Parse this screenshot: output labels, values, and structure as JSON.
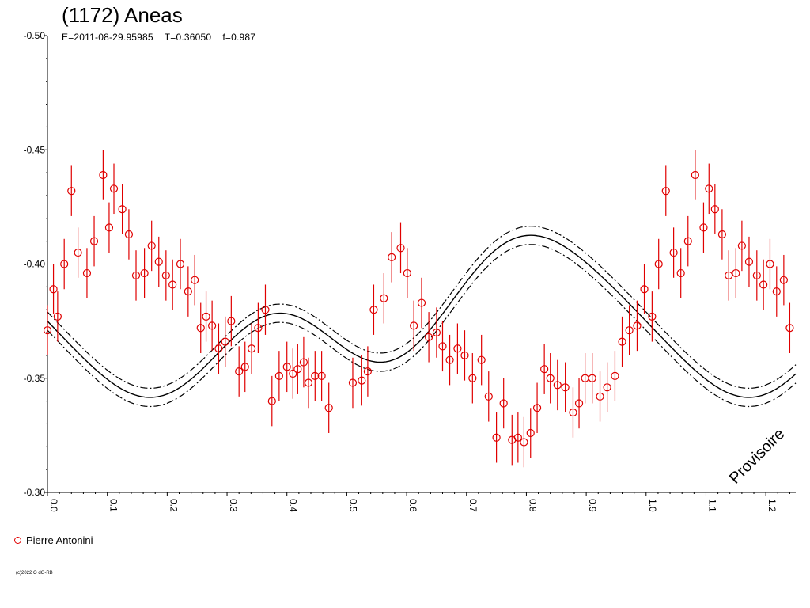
{
  "chart_data": {
    "type": "scatter",
    "title": "(1172) Aneas",
    "subtitle": "E=2011-08-29.95985    T=0.36050    f=0.987",
    "xlabel": "",
    "ylabel": "",
    "xlim": [
      0.0,
      1.25
    ],
    "ylim": [
      -0.5,
      -0.3
    ],
    "y_inverted": true,
    "grid": false,
    "x_tick_labels": [
      "0.0",
      "0.1",
      "0.2",
      "0.3",
      "0.4",
      "0.5",
      "0.6",
      "0.7",
      "0.8",
      "0.9",
      "1.0",
      "1.1",
      "1.2"
    ],
    "y_tick_labels": [
      "-0.50",
      "-0.45",
      "-0.40",
      "-0.35",
      "-0.30"
    ],
    "legend_position": "bottom-left",
    "watermark": "Provisoire",
    "colors": {
      "points": "#e00000",
      "fit": "#000000"
    },
    "series": [
      {
        "name": "Pierre Antonini",
        "error": 0.011,
        "x": [
          0.0,
          0.01,
          0.017,
          0.028,
          0.04,
          0.051,
          0.066,
          0.078,
          0.093,
          0.103,
          0.111,
          0.125,
          0.136,
          0.148,
          0.162,
          0.174,
          0.186,
          0.198,
          0.209,
          0.222,
          0.235,
          0.246,
          0.256,
          0.265,
          0.275,
          0.286,
          0.297,
          0.307,
          0.32,
          0.33,
          0.341,
          0.352,
          0.364,
          0.375,
          0.387,
          0.4,
          0.41,
          0.418,
          0.428,
          0.436,
          0.447,
          0.458,
          0.47,
          0.51,
          0.525,
          0.535,
          0.545,
          0.562,
          0.575,
          0.59,
          0.601,
          0.612,
          0.625,
          0.637,
          0.65,
          0.66,
          0.672,
          0.685,
          0.697,
          0.71,
          0.725,
          0.737,
          0.75,
          0.762,
          0.776,
          0.786,
          0.796,
          0.807,
          0.818,
          0.83,
          0.84,
          0.852,
          0.865,
          0.878,
          0.888,
          0.898,
          0.91,
          0.923,
          0.935,
          0.948,
          0.96,
          0.972,
          0.985,
          0.997,
          1.01,
          1.021,
          1.033,
          1.046,
          1.058,
          1.07,
          1.082,
          1.096,
          1.105,
          1.115,
          1.127,
          1.138,
          1.15,
          1.16,
          1.172,
          1.185,
          1.196,
          1.207,
          1.218,
          1.23,
          1.24
        ],
        "y": [
          -0.371,
          -0.389,
          -0.377,
          -0.4,
          -0.432,
          -0.405,
          -0.396,
          -0.41,
          -0.439,
          -0.416,
          -0.433,
          -0.424,
          -0.413,
          -0.395,
          -0.396,
          -0.408,
          -0.401,
          -0.395,
          -0.391,
          -0.4,
          -0.388,
          -0.393,
          -0.372,
          -0.377,
          -0.373,
          -0.363,
          -0.366,
          -0.375,
          -0.353,
          -0.355,
          -0.363,
          -0.372,
          -0.38,
          -0.34,
          -0.351,
          -0.355,
          -0.352,
          -0.354,
          -0.357,
          -0.348,
          -0.351,
          -0.351,
          -0.337,
          -0.348,
          -0.349,
          -0.353,
          -0.38,
          -0.385,
          -0.403,
          -0.407,
          -0.396,
          -0.373,
          -0.383,
          -0.368,
          -0.37,
          -0.364,
          -0.358,
          -0.363,
          -0.36,
          -0.35,
          -0.358,
          -0.342,
          -0.324,
          -0.339,
          -0.323,
          -0.324,
          -0.322,
          -0.326,
          -0.337,
          -0.354,
          -0.35,
          -0.347,
          -0.346,
          -0.335,
          -0.339,
          -0.35,
          -0.35,
          -0.342,
          -0.346,
          -0.351,
          -0.366,
          -0.371,
          -0.373,
          -0.389,
          -0.377,
          -0.4,
          -0.432,
          -0.405,
          -0.396,
          -0.41,
          -0.439,
          -0.416,
          -0.433,
          -0.424,
          -0.413,
          -0.395,
          -0.396,
          -0.408,
          -0.401,
          -0.395,
          -0.391,
          -0.4,
          -0.388,
          -0.393,
          -0.372
        ]
      }
    ],
    "fit": {
      "name": "",
      "mean": -0.374,
      "band": 0.004,
      "harmonics": [
        {
          "a": -0.0041,
          "b": 0.0224
        },
        {
          "a": 0.0052,
          "b": 0.0179
        },
        {
          "a": -0.0021,
          "b": -0.0049
        }
      ]
    }
  },
  "legend": {
    "label": "Pierre Antonini"
  },
  "watermark": "Provisoire",
  "copyright": "(c)2022 O dG-RB"
}
